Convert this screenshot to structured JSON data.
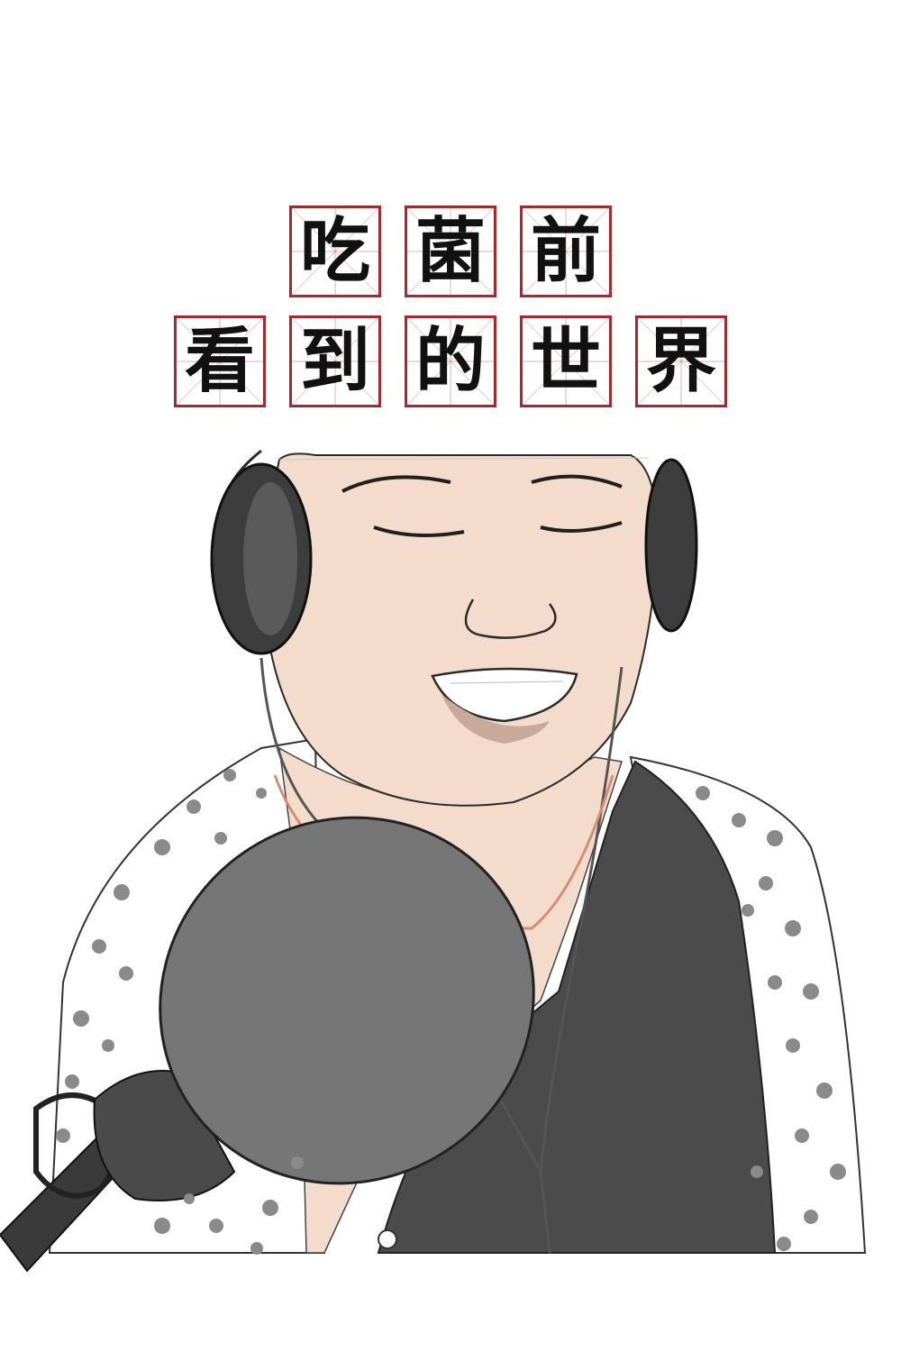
{
  "title": {
    "line1": [
      "吃",
      "菌",
      "前"
    ],
    "line2": [
      "看",
      "到",
      "的",
      "世",
      "界"
    ]
  },
  "colors": {
    "box_border": "#a8282e",
    "skin": "#f3dccb",
    "lip": "#c9aa9a",
    "hair_line": "#1f1f1f",
    "headphone": "#3d3d3d",
    "mic": "#767676",
    "mic_dark": "#4a4a4a",
    "tank_top": "#4b4b4b",
    "necklace": "#d88c73",
    "dot": "#8a8a8a"
  }
}
